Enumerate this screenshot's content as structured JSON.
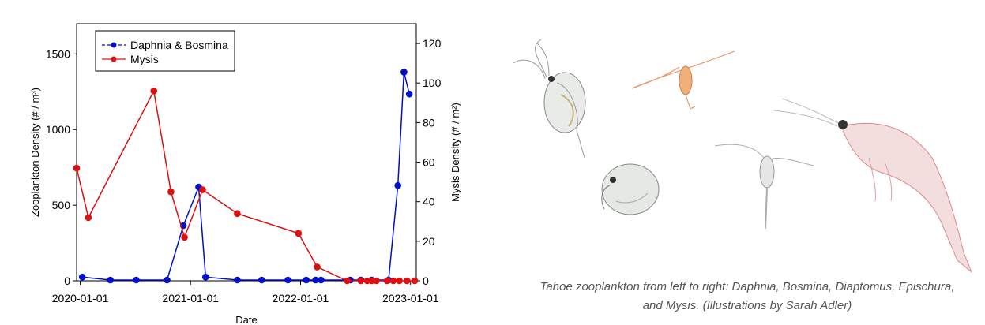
{
  "chart_data": {
    "type": "line",
    "xlabel": "Date",
    "ylabel_left": "Zooplankton Density (# / m³)",
    "ylabel_right": "Mysis Density (# / m²)",
    "x_ticks": [
      "2020-01-01",
      "2021-01-01",
      "2022-01-01",
      "2023-01-01"
    ],
    "x_range": [
      "2019-12-20",
      "2023-01-20"
    ],
    "ylim_left": [
      0,
      1700
    ],
    "yticks_left": [
      0,
      500,
      1000,
      1500
    ],
    "ylim_right": [
      0,
      130
    ],
    "yticks_right": [
      0,
      20,
      40,
      60,
      80,
      100,
      120
    ],
    "legend_position": "top-left",
    "series": [
      {
        "name": "Daphnia & Bosmina",
        "axis": "left",
        "color": "#0010c8",
        "line_style": "dashed-in-legend",
        "points": [
          [
            "2020-01-08",
            25
          ],
          [
            "2020-04-10",
            5
          ],
          [
            "2020-07-05",
            5
          ],
          [
            "2020-10-15",
            5
          ],
          [
            "2020-12-08",
            365
          ],
          [
            "2021-01-28",
            620
          ],
          [
            "2021-02-20",
            25
          ],
          [
            "2021-06-05",
            5
          ],
          [
            "2021-08-25",
            5
          ],
          [
            "2021-11-20",
            5
          ],
          [
            "2022-01-20",
            5
          ],
          [
            "2022-02-20",
            5
          ],
          [
            "2022-03-10",
            5
          ],
          [
            "2022-06-15",
            5
          ],
          [
            "2022-07-20",
            5
          ],
          [
            "2022-08-25",
            5
          ],
          [
            "2022-10-20",
            5
          ],
          [
            "2022-11-20",
            630
          ],
          [
            "2022-12-10",
            1380
          ],
          [
            "2022-12-28",
            1235
          ]
        ]
      },
      {
        "name": "Mysis",
        "axis": "right",
        "color": "#dd1010",
        "points": [
          [
            "2019-12-20",
            57
          ],
          [
            "2020-01-28",
            32
          ],
          [
            "2020-09-01",
            96
          ],
          [
            "2020-10-28",
            45
          ],
          [
            "2020-12-12",
            22
          ],
          [
            "2021-02-10",
            46
          ],
          [
            "2021-06-05",
            34
          ],
          [
            "2021-12-25",
            24
          ],
          [
            "2022-02-25",
            7
          ],
          [
            "2022-06-05",
            0
          ],
          [
            "2022-07-20",
            0
          ],
          [
            "2022-08-10",
            0
          ],
          [
            "2022-08-25",
            0
          ],
          [
            "2022-09-10",
            0
          ],
          [
            "2022-10-15",
            0
          ],
          [
            "2022-11-05",
            0
          ],
          [
            "2022-11-25",
            0
          ],
          [
            "2022-12-20",
            0
          ],
          [
            "2023-01-15",
            0
          ]
        ]
      }
    ]
  },
  "caption": {
    "line1": "Tahoe zooplankton from left to right: Daphnia, Bosmina, Diaptomus, Epischura,",
    "line2": "and Mysis. (Illustrations by Sarah Adler)"
  },
  "illustrations": {
    "names": [
      "daphnia-illustration",
      "bosmina-illustration",
      "diaptomus-illustration",
      "epischura-illustration",
      "mysis-illustration"
    ]
  }
}
